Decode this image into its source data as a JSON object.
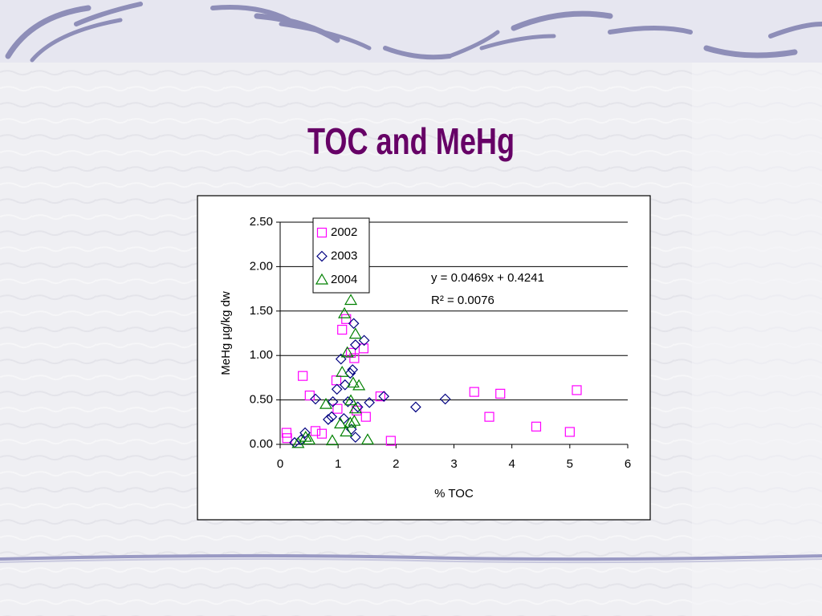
{
  "title": "TOC and MeHg",
  "chart_data": {
    "type": "scatter",
    "xlabel": "% TOC",
    "ylabel": "MeHg µg/kg dw",
    "annotations": [
      "y = 0.0469x + 0.4241",
      "R² = 0.0076"
    ],
    "xlim": [
      0,
      6
    ],
    "xticks": [
      0,
      1,
      2,
      3,
      4,
      5,
      6
    ],
    "ylim": [
      0,
      2.5
    ],
    "yticks": [
      {
        "value": 0,
        "label": "0.00"
      },
      {
        "value": 0.5,
        "label": "0.50"
      },
      {
        "value": 1,
        "label": "1.00"
      },
      {
        "value": 1.5,
        "label": "1.50"
      },
      {
        "value": 2,
        "label": "2.00"
      },
      {
        "value": 2.5,
        "label": "2.50"
      }
    ],
    "grid": true,
    "legend": "upper left",
    "series": [
      {
        "name": "2002",
        "color": "#ff00ff",
        "marker": "square",
        "x": [
          0.11,
          0.12,
          0.39,
          0.51,
          0.61,
          0.72,
          0.97,
          1.07,
          1.14,
          1.22,
          1.44,
          1.48,
          1.73,
          1.91,
          3.35,
          3.61,
          3.8,
          4.42,
          5.0,
          5.12,
          1.28,
          0.99,
          1.32
        ],
        "values": [
          0.13,
          0.07,
          0.77,
          0.55,
          0.15,
          0.12,
          0.72,
          1.29,
          1.41,
          1.03,
          1.08,
          0.31,
          0.54,
          0.04,
          0.59,
          0.31,
          0.57,
          0.2,
          0.14,
          0.61,
          0.97,
          0.4,
          0.38
        ]
      },
      {
        "name": "2003",
        "color": "#000080",
        "marker": "diamond",
        "x": [
          0.25,
          0.36,
          0.43,
          0.61,
          0.83,
          0.89,
          0.98,
          1.05,
          1.12,
          1.21,
          1.27,
          1.3,
          1.25,
          1.45,
          1.54,
          1.79,
          2.34,
          2.85,
          1.3,
          1.1,
          1.34,
          0.91,
          1.17,
          1.23
        ],
        "values": [
          0.02,
          0.05,
          0.13,
          0.51,
          0.28,
          0.31,
          0.62,
          0.96,
          0.67,
          0.8,
          1.36,
          1.12,
          0.84,
          1.17,
          0.47,
          0.54,
          0.42,
          0.51,
          0.08,
          0.29,
          0.42,
          0.48,
          0.48,
          0.17
        ]
      },
      {
        "name": "2004",
        "color": "#008000",
        "marker": "triangle",
        "x": [
          0.31,
          0.44,
          0.5,
          0.79,
          0.9,
          1.04,
          1.11,
          1.22,
          1.16,
          1.3,
          1.26,
          1.36,
          1.21,
          1.28,
          1.51,
          1.14,
          1.07,
          1.22,
          1.3
        ],
        "values": [
          0.01,
          0.08,
          0.05,
          0.45,
          0.04,
          0.23,
          1.47,
          1.62,
          1.03,
          1.24,
          0.69,
          0.66,
          0.24,
          0.26,
          0.05,
          0.14,
          0.81,
          0.49,
          0.4
        ]
      }
    ]
  }
}
